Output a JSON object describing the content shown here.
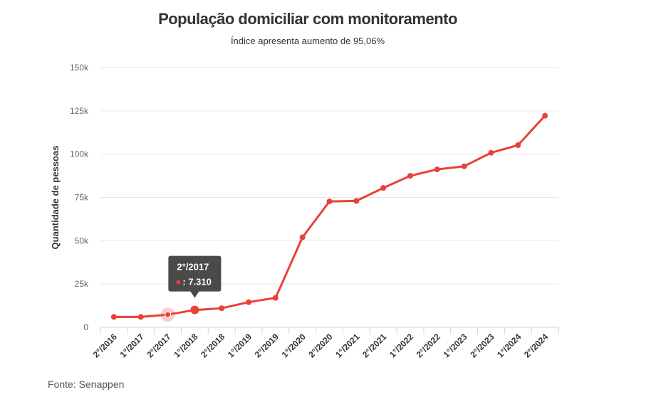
{
  "header": {
    "title": "População domiciliar com monitoramento",
    "subtitle": "Índice apresenta aumento de 95,06%"
  },
  "footer": {
    "source": "Fonte: Senappen"
  },
  "tooltip": {
    "title": "2°/2017",
    "value": ": 7.310"
  },
  "colors": {
    "series": "#e8413a",
    "grid": "#e6e6e6",
    "tooltip_bg": "#4a4a4a"
  },
  "chart_data": {
    "type": "line",
    "title": "População domiciliar com monitoramento",
    "subtitle": "Índice apresenta aumento de 95,06%",
    "xlabel": "",
    "ylabel": "Quantidade de pessoas",
    "ylim": [
      0,
      150000
    ],
    "yticks": [
      0,
      25000,
      50000,
      75000,
      100000,
      125000,
      150000
    ],
    "ytick_labels": [
      "0",
      "25k",
      "50k",
      "75k",
      "100k",
      "125k",
      "150k"
    ],
    "grid": true,
    "categories": [
      "2°/2016",
      "1°/2017",
      "2°/2017",
      "1°/2018",
      "2°/2018",
      "1°/2019",
      "2°/2019",
      "1°/2020",
      "2°/2020",
      "1°/2021",
      "2°/2021",
      "1°/2022",
      "2°/2022",
      "1°/2023",
      "2°/2023",
      "1°/2024",
      "2°/2024"
    ],
    "series": [
      {
        "name": "",
        "values": [
          6000,
          6000,
          7310,
          10000,
          11000,
          14500,
          17000,
          52000,
          72700,
          73000,
          80500,
          87500,
          91200,
          93000,
          100800,
          105200,
          122200
        ]
      }
    ],
    "highlighted_index": 2
  }
}
